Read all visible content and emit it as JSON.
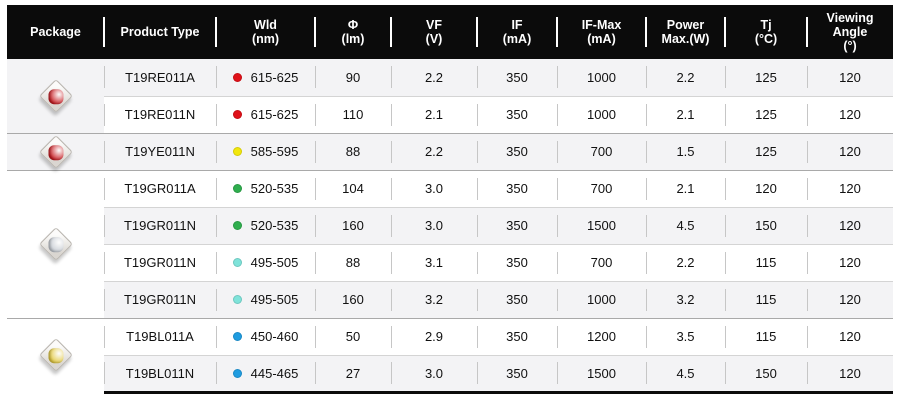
{
  "table": {
    "columns": [
      {
        "id": "package",
        "lines": [
          "Package"
        ]
      },
      {
        "id": "product_type",
        "lines": [
          "Product Type"
        ]
      },
      {
        "id": "wld",
        "lines": [
          "Wld",
          "(nm)"
        ]
      },
      {
        "id": "flux",
        "lines": [
          "Φ",
          "(lm)"
        ]
      },
      {
        "id": "vf",
        "lines": [
          "VF",
          "(V)"
        ]
      },
      {
        "id": "if",
        "lines": [
          "IF",
          "(mA)"
        ]
      },
      {
        "id": "if_max",
        "lines": [
          "IF-Max",
          "(mA)"
        ]
      },
      {
        "id": "power_max",
        "lines": [
          "Power",
          "Max.(W)"
        ]
      },
      {
        "id": "tj",
        "lines": [
          "Tj",
          "(°C)"
        ]
      },
      {
        "id": "viewing_angle",
        "lines": [
          "Viewing",
          "Angle",
          "(°)"
        ]
      }
    ],
    "groups": [
      {
        "package_icon": "led-package-red-icon",
        "dome_color": "#c8191f",
        "rows": [
          {
            "product_type": "T19RE011A",
            "dot_color": "#e01119",
            "wld": "615-625",
            "flux": "90",
            "vf": "2.2",
            "if": "350",
            "if_max": "1000",
            "power_max": "2.2",
            "tj": "125",
            "viewing_angle": "120"
          },
          {
            "product_type": "T19RE011N",
            "dot_color": "#e01119",
            "wld": "615-625",
            "flux": "110",
            "vf": "2.1",
            "if": "350",
            "if_max": "1000",
            "power_max": "2.1",
            "tj": "125",
            "viewing_angle": "120"
          }
        ]
      },
      {
        "package_icon": "led-package-red-icon",
        "dome_color": "#c8191f",
        "rows": [
          {
            "product_type": "T19YE011N",
            "dot_color": "#f2e70c",
            "wld": "585-595",
            "flux": "88",
            "vf": "2.2",
            "if": "350",
            "if_max": "700",
            "power_max": "1.5",
            "tj": "125",
            "viewing_angle": "120"
          }
        ]
      },
      {
        "package_icon": "led-package-clear-icon",
        "dome_color": "#c7ccd3",
        "rows": [
          {
            "product_type": "T19GR011A",
            "dot_color": "#2fae4e",
            "wld": "520-535",
            "flux": "104",
            "vf": "3.0",
            "if": "350",
            "if_max": "700",
            "power_max": "2.1",
            "tj": "120",
            "viewing_angle": "120"
          },
          {
            "product_type": "T19GR011N",
            "dot_color": "#2fae4e",
            "wld": "520-535",
            "flux": "160",
            "vf": "3.0",
            "if": "350",
            "if_max": "1500",
            "power_max": "4.5",
            "tj": "150",
            "viewing_angle": "120"
          },
          {
            "product_type": "T19GR011N",
            "dot_color": "#7fe3da",
            "wld": "495-505",
            "flux": "88",
            "vf": "3.1",
            "if": "350",
            "if_max": "700",
            "power_max": "2.2",
            "tj": "115",
            "viewing_angle": "120"
          },
          {
            "product_type": "T19GR011N",
            "dot_color": "#7fe3da",
            "wld": "495-505",
            "flux": "160",
            "vf": "3.2",
            "if": "350",
            "if_max": "1000",
            "power_max": "3.2",
            "tj": "115",
            "viewing_angle": "120"
          }
        ]
      },
      {
        "package_icon": "led-package-yellow-icon",
        "dome_color": "#e3c93f",
        "rows": [
          {
            "product_type": "T19BL011A",
            "dot_color": "#1f9ce0",
            "wld": "450-460",
            "flux": "50",
            "vf": "2.9",
            "if": "350",
            "if_max": "1200",
            "power_max": "3.5",
            "tj": "115",
            "viewing_angle": "120"
          },
          {
            "product_type": "T19BL011N",
            "dot_color": "#1f9ce0",
            "wld": "445-465",
            "flux": "27",
            "vf": "3.0",
            "if": "350",
            "if_max": "1500",
            "power_max": "4.5",
            "tj": "150",
            "viewing_angle": "120"
          }
        ]
      }
    ]
  },
  "colors": {
    "header_bg": "#0b0b0b",
    "stripe_bg": "#f3f3f5"
  }
}
